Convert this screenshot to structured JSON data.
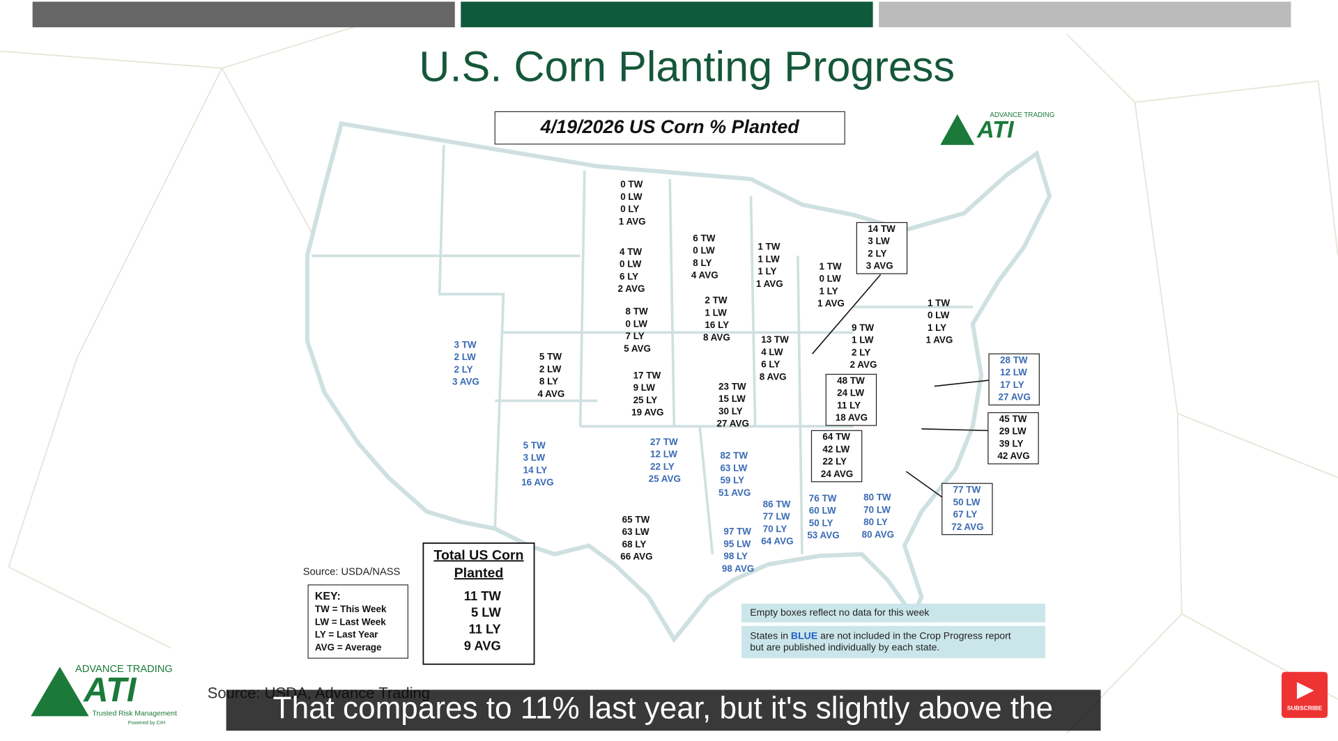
{
  "title": "U.S. Corn Planting Progress",
  "map_title": "4/19/2026 US Corn % Planted",
  "logo": {
    "brand": "ADVANCE TRADING",
    "name": "ATI",
    "tagline": "Trusted Risk Management",
    "powered": "Powered by CIH"
  },
  "states": [
    {
      "lines": [
        "0 TW",
        "0 LW",
        "0 LY",
        "1 AVG"
      ],
      "color": "#111",
      "boxed": false
    },
    {
      "lines": [
        "6 TW",
        "0 LW",
        "8 LY",
        "4 AVG"
      ],
      "color": "#111",
      "boxed": false
    },
    {
      "lines": [
        "1 TW",
        "1 LW",
        "1 LY",
        "1 AVG"
      ],
      "color": "#111",
      "boxed": false
    },
    {
      "lines": [
        "14 TW",
        "3 LW",
        "2 LY",
        "3 AVG"
      ],
      "color": "#111",
      "boxed": true
    },
    {
      "lines": [
        "4 TW",
        "0 LW",
        "6 LY",
        "2 AVG"
      ],
      "color": "#111",
      "boxed": false
    },
    {
      "lines": [
        "1 TW",
        "0 LW",
        "1 LY",
        "1 AVG"
      ],
      "color": "#111",
      "boxed": false
    },
    {
      "lines": [
        "1 TW",
        "0 LW",
        "1 LY",
        "1 AVG"
      ],
      "color": "#111",
      "boxed": false
    },
    {
      "lines": [
        "2 TW",
        "1 LW",
        "16 LY",
        "8 AVG"
      ],
      "color": "#111",
      "boxed": false
    },
    {
      "lines": [
        "8 TW",
        "0 LW",
        "7 LY",
        "5 AVG"
      ],
      "color": "#111",
      "boxed": false
    },
    {
      "lines": [
        "3 TW",
        "2 LW",
        "2 LY",
        "3 AVG"
      ],
      "color": "#3a6bb5",
      "boxed": false
    },
    {
      "lines": [
        "5 TW",
        "2 LW",
        "8 LY",
        "4 AVG"
      ],
      "color": "#111",
      "boxed": false
    },
    {
      "lines": [
        "13 TW",
        "4 LW",
        "6 LY",
        "8 AVG"
      ],
      "color": "#111",
      "boxed": false
    },
    {
      "lines": [
        "9 TW",
        "1 LW",
        "2 LY",
        "2 AVG"
      ],
      "color": "#111",
      "boxed": false
    },
    {
      "lines": [
        "28 TW",
        "12 LW",
        "17 LY",
        "27 AVG"
      ],
      "color": "#3a6bb5",
      "boxed": true
    },
    {
      "lines": [
        "48 TW",
        "24 LW",
        "11 LY",
        "18 AVG"
      ],
      "color": "#111",
      "boxed": true
    },
    {
      "lines": [
        "17 TW",
        "9 LW",
        "25 LY",
        "19 AVG"
      ],
      "color": "#111",
      "boxed": false
    },
    {
      "lines": [
        "23 TW",
        "15 LW",
        "30 LY",
        "27 AVG"
      ],
      "color": "#111",
      "boxed": false
    },
    {
      "lines": [
        "45 TW",
        "29 LW",
        "39 LY",
        "42 AVG"
      ],
      "color": "#111",
      "boxed": true
    },
    {
      "lines": [
        "64 TW",
        "42 LW",
        "22 LY",
        "24 AVG"
      ],
      "color": "#111",
      "boxed": true
    },
    {
      "lines": [
        "5 TW",
        "3 LW",
        "14 LY",
        "16 AVG"
      ],
      "color": "#3a6bb5",
      "boxed": false
    },
    {
      "lines": [
        "27 TW",
        "12 LW",
        "22 LY",
        "25 AVG"
      ],
      "color": "#3a6bb5",
      "boxed": false
    },
    {
      "lines": [
        "82 TW",
        "63 LW",
        "59 LY",
        "51 AVG"
      ],
      "color": "#3a6bb5",
      "boxed": false
    },
    {
      "lines": [
        "77 TW",
        "50 LW",
        "67 LY",
        "72 AVG"
      ],
      "color": "#3a6bb5",
      "boxed": true
    },
    {
      "lines": [
        "80 TW",
        "70 LW",
        "80 LY",
        "80 AVG"
      ],
      "color": "#3a6bb5",
      "boxed": false
    },
    {
      "lines": [
        "76 TW",
        "60 LW",
        "50 LY",
        "53 AVG"
      ],
      "color": "#3a6bb5",
      "boxed": false
    },
    {
      "lines": [
        "86 TW",
        "77 LW",
        "70 LY",
        "64 AVG"
      ],
      "color": "#3a6bb5",
      "boxed": false
    },
    {
      "lines": [
        "65 TW",
        "63 LW",
        "68 LY",
        "66 AVG"
      ],
      "color": "#111",
      "boxed": false
    },
    {
      "lines": [
        "97 TW",
        "95 LW",
        "98 LY",
        "98 AVG"
      ],
      "color": "#3a6bb5",
      "boxed": false
    }
  ],
  "total": {
    "heading": [
      "Total US Corn",
      "Planted"
    ],
    "lines": [
      "11 TW",
      "5 LW",
      "11 LY",
      "9 AVG"
    ]
  },
  "key": [
    "KEY:",
    "TW = This Week",
    "LW = Last Week",
    "LY = Last Year",
    "AVG = Average"
  ],
  "source_map": "Source: USDA/NASS",
  "notes": {
    "empty": "Empty boxes reflect no data for this week",
    "blue_pre": "States in ",
    "blue_word": "BLUE",
    "blue_post": " are not included in the Crop Progress report",
    "blue_line2": "but are published individually by each state."
  },
  "source_footer": "Source: USDA, Advance Trading",
  "caption": "That compares to 11% last year, but it's slightly above the",
  "subscribe": "SUBSCRIBE"
}
